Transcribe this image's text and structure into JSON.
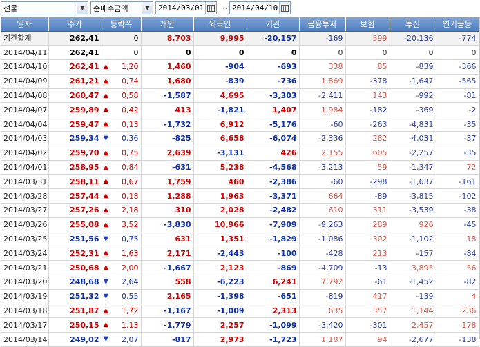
{
  "toolbar": {
    "market_select": "선물",
    "metric_select": "순매수금액",
    "start_date": "2014/03/01",
    "separator": "~",
    "end_date": "2014/04/10"
  },
  "columns": [
    "일자",
    "주가",
    "등락폭",
    "개인",
    "외국인",
    "기관",
    "금융투자",
    "보험",
    "투신",
    "연기금등"
  ],
  "rows": [
    {
      "date": "기간합계",
      "price": "262,41",
      "dir": "",
      "chg": "0",
      "indiv": "8,703",
      "foreign": "9,995",
      "inst": "-20,157",
      "fin": "-169",
      "ins": "599",
      "trust": "-20,136",
      "pension": "-774",
      "sum": true
    },
    {
      "date": "2014/04/11",
      "price": "262,41",
      "dir": "",
      "chg": "0",
      "indiv": "0",
      "foreign": "0",
      "inst": "0",
      "fin": "0",
      "ins": "0",
      "trust": "0",
      "pension": "0"
    },
    {
      "date": "2014/04/10",
      "price": "262,41",
      "dir": "up",
      "chg": "1,20",
      "indiv": "1,460",
      "foreign": "-904",
      "inst": "-693",
      "fin": "338",
      "ins": "85",
      "trust": "-839",
      "pension": "-366"
    },
    {
      "date": "2014/04/09",
      "price": "261,21",
      "dir": "up",
      "chg": "0,74",
      "indiv": "1,680",
      "foreign": "-839",
      "inst": "-736",
      "fin": "1,869",
      "ins": "-378",
      "trust": "-1,647",
      "pension": "-565"
    },
    {
      "date": "2014/04/08",
      "price": "260,47",
      "dir": "up",
      "chg": "0,58",
      "indiv": "-1,587",
      "foreign": "4,695",
      "inst": "-3,303",
      "fin": "-2,411",
      "ins": "143",
      "trust": "-992",
      "pension": "-81"
    },
    {
      "date": "2014/04/07",
      "price": "259,89",
      "dir": "up",
      "chg": "0,42",
      "indiv": "413",
      "foreign": "-1,821",
      "inst": "1,407",
      "fin": "1,984",
      "ins": "-182",
      "trust": "-369",
      "pension": "-2"
    },
    {
      "date": "2014/04/04",
      "price": "259,47",
      "dir": "up",
      "chg": "0,13",
      "indiv": "-1,732",
      "foreign": "6,912",
      "inst": "-5,176",
      "fin": "-60",
      "ins": "-263",
      "trust": "-4,831",
      "pension": "-35"
    },
    {
      "date": "2014/04/03",
      "price": "259,34",
      "dir": "dn",
      "chg": "0,36",
      "indiv": "-825",
      "foreign": "6,658",
      "inst": "-6,074",
      "fin": "-2,336",
      "ins": "282",
      "trust": "-4,031",
      "pension": "-37"
    },
    {
      "date": "2014/04/02",
      "price": "259,70",
      "dir": "up",
      "chg": "0,75",
      "indiv": "2,639",
      "foreign": "-3,131",
      "inst": "426",
      "fin": "2,155",
      "ins": "605",
      "trust": "-2,257",
      "pension": "-35"
    },
    {
      "date": "2014/04/01",
      "price": "258,95",
      "dir": "up",
      "chg": "0,84",
      "indiv": "-631",
      "foreign": "5,238",
      "inst": "-4,568",
      "fin": "-3,213",
      "ins": "59",
      "trust": "-1,347",
      "pension": "72"
    },
    {
      "date": "2014/03/31",
      "price": "258,11",
      "dir": "up",
      "chg": "0,67",
      "indiv": "1,759",
      "foreign": "460",
      "inst": "-2,386",
      "fin": "-60",
      "ins": "-298",
      "trust": "-1,637",
      "pension": "-161"
    },
    {
      "date": "2014/03/28",
      "price": "257,44",
      "dir": "up",
      "chg": "0,18",
      "indiv": "1,288",
      "foreign": "1,963",
      "inst": "-3,371",
      "fin": "664",
      "ins": "-89",
      "trust": "-3,815",
      "pension": "-102"
    },
    {
      "date": "2014/03/27",
      "price": "257,26",
      "dir": "up",
      "chg": "2,18",
      "indiv": "310",
      "foreign": "2,028",
      "inst": "-2,482",
      "fin": "610",
      "ins": "311",
      "trust": "-3,539",
      "pension": "-38"
    },
    {
      "date": "2014/03/26",
      "price": "255,08",
      "dir": "up",
      "chg": "3,52",
      "indiv": "-3,830",
      "foreign": "10,966",
      "inst": "-7,909",
      "fin": "-9,263",
      "ins": "289",
      "trust": "926",
      "pension": "-45"
    },
    {
      "date": "2014/03/25",
      "price": "251,56",
      "dir": "dn",
      "chg": "0,75",
      "indiv": "631",
      "foreign": "1,351",
      "inst": "-1,829",
      "fin": "-1,086",
      "ins": "302",
      "trust": "-1,102",
      "pension": "18"
    },
    {
      "date": "2014/03/24",
      "price": "252,31",
      "dir": "up",
      "chg": "1,63",
      "indiv": "2,171",
      "foreign": "-2,443",
      "inst": "-100",
      "fin": "-428",
      "ins": "213",
      "trust": "-157",
      "pension": "-84"
    },
    {
      "date": "2014/03/21",
      "price": "250,68",
      "dir": "up",
      "chg": "2,00",
      "indiv": "-1,667",
      "foreign": "2,123",
      "inst": "-869",
      "fin": "-4,709",
      "ins": "-13",
      "trust": "3,895",
      "pension": "56"
    },
    {
      "date": "2014/03/20",
      "price": "248,68",
      "dir": "dn",
      "chg": "2,64",
      "indiv": "558",
      "foreign": "-6,223",
      "inst": "6,241",
      "fin": "7,792",
      "ins": "-61",
      "trust": "-1,452",
      "pension": "-82"
    },
    {
      "date": "2014/03/19",
      "price": "251,32",
      "dir": "dn",
      "chg": "0,55",
      "indiv": "2,165",
      "foreign": "-1,398",
      "inst": "-651",
      "fin": "-819",
      "ins": "417",
      "trust": "-139",
      "pension": "4"
    },
    {
      "date": "2014/03/18",
      "price": "251,87",
      "dir": "up",
      "chg": "1,72",
      "indiv": "-1,167",
      "foreign": "-1,009",
      "inst": "2,313",
      "fin": "635",
      "ins": "357",
      "trust": "1,144",
      "pension": "236"
    },
    {
      "date": "2014/03/17",
      "price": "250,15",
      "dir": "up",
      "chg": "1,13",
      "indiv": "-1,779",
      "foreign": "2,257",
      "inst": "-1,099",
      "fin": "-3,420",
      "ins": "-301",
      "trust": "2,457",
      "pension": "178"
    },
    {
      "date": "2014/03/14",
      "price": "249,02",
      "dir": "dn",
      "chg": "2,07",
      "indiv": "-817",
      "foreign": "2,973",
      "inst": "-1,723",
      "fin": "1,187",
      "ins": "94",
      "trust": "-2,677",
      "pension": "-138"
    }
  ],
  "icons": {
    "dropdown": "chevron-down-icon",
    "calendar": "calendar-icon",
    "up": "triangle-up-icon",
    "down": "triangle-down-icon"
  },
  "colors": {
    "up": "#d40000",
    "down": "#0a2fb0",
    "header": "#5b88c8"
  }
}
